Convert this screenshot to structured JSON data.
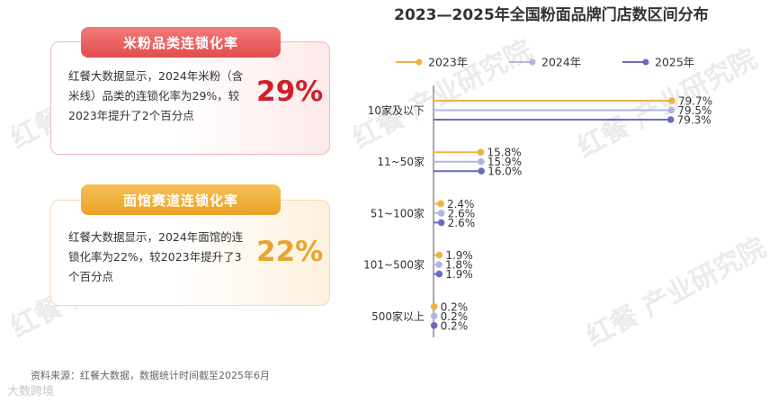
{
  "left_panel": {
    "card1": {
      "title": "米粉品类连锁化率",
      "description": "红餐大数据显示，2024年米粉（含米线）品类的连锁化率为29%，较2023年提升了2个百分点",
      "big_value": "29%"
    },
    "card2": {
      "title": "面馆赛道连锁化率",
      "description": "红餐大数据显示，2024年面馆的连锁化率为22%，较2023年提升了3个百分点",
      "big_value": "22%"
    }
  },
  "watermark_text": "红餐 产业研究院",
  "footer": {
    "source": "资料来源：红餐大数据，数据统计时间截至2025年6月",
    "watermark": "大数跨境"
  },
  "chart_data": {
    "type": "bar",
    "orientation": "horizontal",
    "title": "2023—2025年全国粉面品牌门店数区间分布",
    "categories": [
      "10家及以下",
      "11~50家",
      "51~100家",
      "101~500家",
      "500家以上"
    ],
    "series": [
      {
        "name": "2023年",
        "color": "#eeb247",
        "values": [
          79.7,
          15.8,
          2.4,
          1.9,
          0.2
        ],
        "labels": [
          "79.7%",
          "15.8%",
          "2.4%",
          "1.9%",
          "0.2%"
        ]
      },
      {
        "name": "2024年",
        "color": "#b3b5e0",
        "values": [
          79.5,
          15.9,
          2.6,
          1.8,
          0.2
        ],
        "labels": [
          "79.5%",
          "15.9%",
          "2.6%",
          "1.8%",
          "0.2%"
        ]
      },
      {
        "name": "2025年",
        "color": "#6b6bc1",
        "values": [
          79.3,
          16.0,
          2.6,
          1.9,
          0.2
        ],
        "labels": [
          "79.3%",
          "16.0%",
          "2.6%",
          "1.9%",
          "0.2%"
        ]
      }
    ],
    "xlim": [
      0,
      80
    ],
    "unit": "%",
    "legend_position": "top"
  }
}
